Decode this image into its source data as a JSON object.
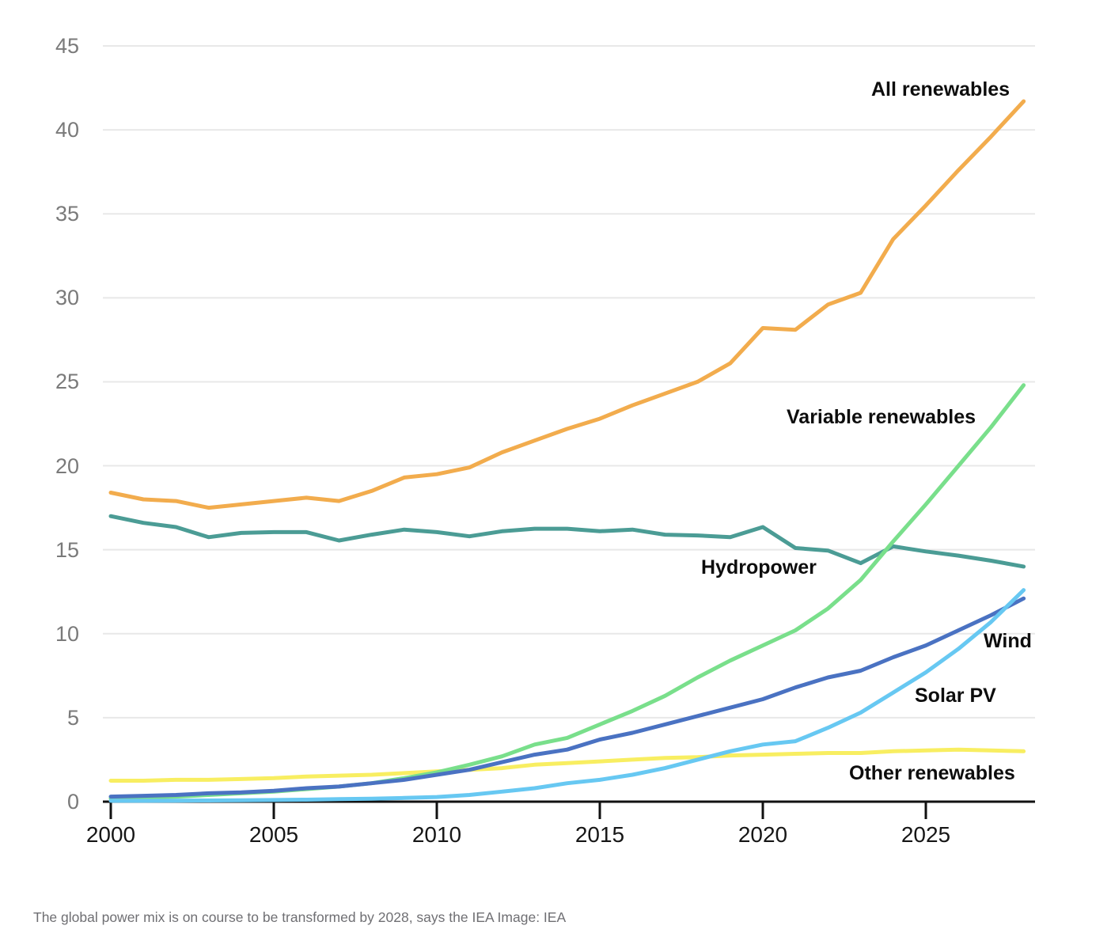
{
  "chart_data": {
    "type": "line",
    "title": "",
    "xlabel": "",
    "ylabel": "",
    "x": [
      2000,
      2001,
      2002,
      2003,
      2004,
      2005,
      2006,
      2007,
      2008,
      2009,
      2010,
      2011,
      2012,
      2013,
      2014,
      2015,
      2016,
      2017,
      2018,
      2019,
      2020,
      2021,
      2022,
      2023,
      2024,
      2025,
      2026,
      2027,
      2028
    ],
    "xlim": [
      2000,
      2028.4
    ],
    "ylim": [
      0,
      45
    ],
    "y_ticks": [
      0,
      5,
      10,
      15,
      20,
      25,
      30,
      35,
      40,
      45
    ],
    "x_ticks": [
      2000,
      2005,
      2010,
      2015,
      2020,
      2025
    ],
    "grid": "horizontal",
    "legend_position": "inline-labels",
    "series": [
      {
        "name": "Other renewables",
        "color": "#F8EE61",
        "values": [
          1.25,
          1.25,
          1.3,
          1.3,
          1.35,
          1.4,
          1.5,
          1.55,
          1.6,
          1.7,
          1.8,
          1.9,
          2.0,
          2.2,
          2.3,
          2.4,
          2.5,
          2.6,
          2.65,
          2.75,
          2.8,
          2.85,
          2.9,
          2.9,
          3.0,
          3.05,
          3.1,
          3.05,
          3.0
        ]
      },
      {
        "name": "Hydropower",
        "color": "#4B9C95",
        "values": [
          17.0,
          16.6,
          16.35,
          15.75,
          16.0,
          16.05,
          16.05,
          15.55,
          15.9,
          16.2,
          16.05,
          15.8,
          16.1,
          16.25,
          16.25,
          16.1,
          16.2,
          15.9,
          15.85,
          15.75,
          16.35,
          15.1,
          14.95,
          14.2,
          15.2,
          14.9,
          14.65,
          14.35,
          14.0
        ]
      },
      {
        "name": "Variable renewables",
        "color": "#79DF8B",
        "values": [
          0.2,
          0.25,
          0.3,
          0.4,
          0.5,
          0.6,
          0.75,
          0.9,
          1.1,
          1.4,
          1.75,
          2.2,
          2.7,
          3.4,
          3.8,
          4.6,
          5.4,
          6.3,
          7.4,
          8.4,
          9.3,
          10.2,
          11.5,
          13.2,
          15.5,
          17.7,
          20.0,
          22.3,
          24.8
        ]
      },
      {
        "name": "Wind",
        "color": "#4A72C2",
        "values": [
          0.3,
          0.35,
          0.4,
          0.5,
          0.55,
          0.65,
          0.8,
          0.9,
          1.1,
          1.3,
          1.6,
          1.9,
          2.35,
          2.8,
          3.1,
          3.7,
          4.1,
          4.6,
          5.1,
          5.6,
          6.1,
          6.8,
          7.4,
          7.8,
          8.6,
          9.3,
          10.2,
          11.1,
          12.1
        ]
      },
      {
        "name": "Solar PV",
        "color": "#67C8F2",
        "values": [
          0.05,
          0.05,
          0.06,
          0.07,
          0.08,
          0.1,
          0.12,
          0.15,
          0.18,
          0.22,
          0.28,
          0.4,
          0.6,
          0.8,
          1.1,
          1.3,
          1.6,
          2.0,
          2.5,
          3.0,
          3.4,
          3.6,
          4.4,
          5.3,
          6.5,
          7.7,
          9.1,
          10.7,
          12.6
        ]
      },
      {
        "name": "All renewables",
        "color": "#F2AC4D",
        "values": [
          18.4,
          18.0,
          17.9,
          17.5,
          17.7,
          17.9,
          18.1,
          17.9,
          18.5,
          19.3,
          19.5,
          19.9,
          20.8,
          21.5,
          22.2,
          22.8,
          23.6,
          24.3,
          25.0,
          26.1,
          28.2,
          28.1,
          29.6,
          30.3,
          33.5,
          35.5,
          37.6,
          39.6,
          41.7
        ]
      }
    ]
  },
  "axis": {
    "y_tick_labels": [
      "0",
      "5",
      "10",
      "15",
      "20",
      "25",
      "30",
      "35",
      "40",
      "45"
    ],
    "x_tick_labels": [
      "2000",
      "2005",
      "2010",
      "2015",
      "2020",
      "2025"
    ]
  },
  "colors": {
    "axis": "#111111",
    "gridline": "#E8E8E8",
    "y_label": "#7A7A7A",
    "x_label": "#161616",
    "series_label": "#0D0D0D",
    "caption": "#6F6F73"
  },
  "caption": {
    "text": "The global power mix is on course to be transformed by 2028, says the IEA Image: IEA"
  }
}
